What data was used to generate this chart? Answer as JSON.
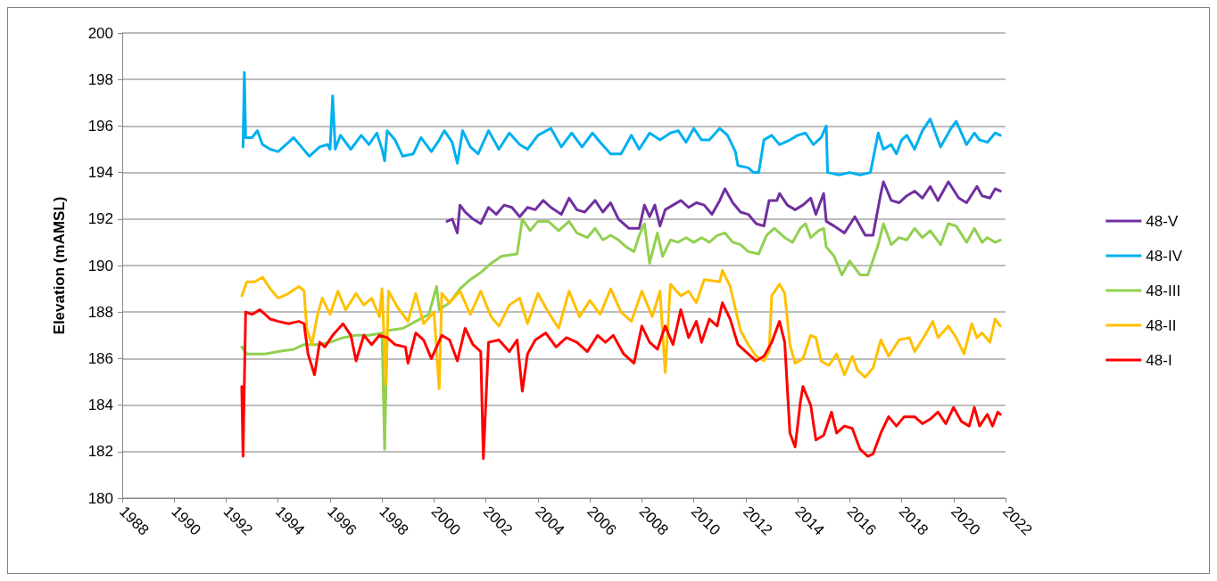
{
  "chart_data": {
    "type": "line",
    "ylabel": "Elevation (mAMSL)",
    "xlim": [
      1988,
      2022
    ],
    "xticks": [
      1988,
      1990,
      1992,
      1994,
      1996,
      1998,
      2000,
      2002,
      2004,
      2006,
      2008,
      2010,
      2012,
      2014,
      2016,
      2018,
      2020,
      2022
    ],
    "ylim": [
      180,
      200
    ],
    "yticks": [
      180,
      182,
      184,
      186,
      188,
      190,
      192,
      194,
      196,
      198,
      200
    ],
    "grid": "y",
    "legend": "right",
    "marker": "none",
    "line_style": "solid",
    "series": [
      {
        "name": "48-V",
        "color": "#7030a0",
        "x": [
          2000.5,
          2000.7,
          2000.9,
          2001.0,
          2001.2,
          2001.5,
          2001.8,
          2002.1,
          2002.4,
          2002.7,
          2003.0,
          2003.3,
          2003.6,
          2003.9,
          2004.2,
          2004.5,
          2004.9,
          2005.2,
          2005.5,
          2005.8,
          2006.2,
          2006.5,
          2006.8,
          2007.1,
          2007.5,
          2007.9,
          2008.1,
          2008.3,
          2008.5,
          2008.7,
          2008.9,
          2009.2,
          2009.5,
          2009.8,
          2010.1,
          2010.4,
          2010.7,
          2011.0,
          2011.2,
          2011.5,
          2011.8,
          2012.1,
          2012.4,
          2012.7,
          2012.9,
          2013.2,
          2013.3,
          2013.6,
          2013.9,
          2014.2,
          2014.5,
          2014.7,
          2015.0,
          2015.1,
          2015.4,
          2015.8,
          2016.2,
          2016.6,
          2016.9,
          2017.2,
          2017.3,
          2017.6,
          2017.9,
          2018.2,
          2018.5,
          2018.8,
          2019.1,
          2019.4,
          2019.8,
          2020.2,
          2020.5,
          2020.9,
          2021.1,
          2021.4,
          2021.6,
          2021.8
        ],
        "values": [
          191.9,
          192.0,
          191.4,
          192.6,
          192.3,
          192.0,
          191.8,
          192.5,
          192.2,
          192.6,
          192.5,
          192.1,
          192.5,
          192.4,
          192.8,
          192.5,
          192.2,
          192.9,
          192.4,
          192.3,
          192.8,
          192.3,
          192.7,
          192.0,
          191.6,
          191.6,
          192.6,
          192.1,
          192.6,
          191.7,
          192.4,
          192.6,
          192.8,
          192.5,
          192.7,
          192.6,
          192.2,
          192.8,
          193.3,
          192.7,
          192.3,
          192.2,
          191.8,
          191.7,
          192.8,
          192.8,
          193.1,
          192.6,
          192.4,
          192.6,
          192.9,
          192.2,
          193.1,
          191.9,
          191.7,
          191.4,
          192.1,
          191.3,
          191.3,
          193.1,
          193.6,
          192.8,
          192.7,
          193.0,
          193.2,
          192.9,
          193.4,
          192.8,
          193.6,
          192.9,
          192.7,
          193.4,
          193.0,
          192.9,
          193.3,
          193.2
        ]
      },
      {
        "name": "48-IV",
        "color": "#00b0f0",
        "x": [
          1992.65,
          1992.7,
          1992.75,
          1993.0,
          1993.2,
          1993.4,
          1993.7,
          1994.0,
          1994.3,
          1994.6,
          1994.9,
          1995.2,
          1995.6,
          1995.9,
          1996.0,
          1996.1,
          1996.2,
          1996.4,
          1996.8,
          1997.2,
          1997.5,
          1997.8,
          1998.0,
          1998.1,
          1998.2,
          1998.5,
          1998.8,
          1999.2,
          1999.5,
          1999.9,
          2000.2,
          2000.4,
          2000.7,
          2000.9,
          2001.1,
          2001.4,
          2001.7,
          2002.1,
          2002.5,
          2002.9,
          2003.3,
          2003.6,
          2004.0,
          2004.5,
          2004.9,
          2005.3,
          2005.7,
          2006.1,
          2006.4,
          2006.8,
          2007.2,
          2007.6,
          2007.9,
          2008.3,
          2008.7,
          2009.1,
          2009.4,
          2009.7,
          2010.0,
          2010.3,
          2010.6,
          2011.0,
          2011.3,
          2011.6,
          2011.7,
          2012.1,
          2012.3,
          2012.5,
          2012.7,
          2013.0,
          2013.3,
          2013.7,
          2014.0,
          2014.3,
          2014.6,
          2014.9,
          2015.1,
          2015.15,
          2015.6,
          2016.0,
          2016.4,
          2016.8,
          2017.1,
          2017.3,
          2017.6,
          2017.8,
          2018.0,
          2018.2,
          2018.5,
          2018.8,
          2019.1,
          2019.5,
          2019.9,
          2020.1,
          2020.5,
          2020.8,
          2021.0,
          2021.3,
          2021.6,
          2021.8
        ],
        "values": [
          195.1,
          198.3,
          195.5,
          195.5,
          195.8,
          195.2,
          195.0,
          194.9,
          195.2,
          195.5,
          195.1,
          194.7,
          195.1,
          195.2,
          195.0,
          197.3,
          195.0,
          195.6,
          195.0,
          195.6,
          195.2,
          195.7,
          195.0,
          194.5,
          195.8,
          195.4,
          194.7,
          194.8,
          195.5,
          194.9,
          195.4,
          195.8,
          195.3,
          194.4,
          195.8,
          195.1,
          194.8,
          195.8,
          195.0,
          195.7,
          195.2,
          195.0,
          195.6,
          195.9,
          195.1,
          195.7,
          195.1,
          195.7,
          195.3,
          194.8,
          194.8,
          195.6,
          195.0,
          195.7,
          195.4,
          195.7,
          195.8,
          195.3,
          195.9,
          195.4,
          195.4,
          195.9,
          195.6,
          194.9,
          194.3,
          194.2,
          194.0,
          194.0,
          195.4,
          195.6,
          195.2,
          195.4,
          195.6,
          195.7,
          195.2,
          195.5,
          196.0,
          194.0,
          193.9,
          194.0,
          193.9,
          194.0,
          195.7,
          195.0,
          195.2,
          194.8,
          195.4,
          195.6,
          195.0,
          195.8,
          196.3,
          195.1,
          195.9,
          196.2,
          195.2,
          195.7,
          195.4,
          195.3,
          195.7,
          195.6
        ]
      },
      {
        "name": "48-III",
        "color": "#92d050",
        "x": [
          1992.6,
          1992.8,
          1993.5,
          1994.0,
          1994.6,
          1995.0,
          1995.5,
          1996.0,
          1996.5,
          1997.0,
          1997.5,
          1998.0,
          1998.1,
          1998.2,
          1998.8,
          1999.3,
          1999.8,
          2000.1,
          2000.2,
          2000.6,
          2001.0,
          2001.4,
          2001.8,
          2002.2,
          2002.6,
          2003.2,
          2003.4,
          2003.7,
          2004.0,
          2004.4,
          2004.8,
          2005.2,
          2005.5,
          2005.9,
          2006.2,
          2006.5,
          2006.8,
          2007.1,
          2007.4,
          2007.7,
          2007.9,
          2008.1,
          2008.3,
          2008.6,
          2008.8,
          2009.1,
          2009.4,
          2009.7,
          2010.0,
          2010.3,
          2010.6,
          2010.9,
          2011.2,
          2011.5,
          2011.8,
          2012.1,
          2012.5,
          2012.8,
          2013.1,
          2013.5,
          2013.8,
          2014.1,
          2014.3,
          2014.5,
          2014.8,
          2015.0,
          2015.1,
          2015.4,
          2015.7,
          2016.0,
          2016.4,
          2016.7,
          2017.1,
          2017.3,
          2017.6,
          2017.9,
          2018.2,
          2018.5,
          2018.8,
          2019.1,
          2019.5,
          2019.8,
          2020.1,
          2020.5,
          2020.8,
          2021.1,
          2021.3,
          2021.6,
          2021.8
        ],
        "values": [
          186.5,
          186.2,
          186.2,
          186.3,
          186.4,
          186.6,
          186.6,
          186.7,
          186.9,
          187.0,
          187.0,
          187.1,
          182.1,
          187.2,
          187.3,
          187.6,
          187.9,
          189.1,
          188.1,
          188.4,
          189.0,
          189.4,
          189.7,
          190.1,
          190.4,
          190.5,
          192.0,
          191.5,
          191.9,
          191.9,
          191.5,
          191.9,
          191.4,
          191.2,
          191.6,
          191.1,
          191.3,
          191.1,
          190.8,
          190.6,
          191.3,
          191.8,
          190.1,
          191.4,
          190.4,
          191.1,
          191.0,
          191.2,
          191.0,
          191.2,
          191.0,
          191.3,
          191.4,
          191.0,
          190.9,
          190.6,
          190.5,
          191.3,
          191.6,
          191.2,
          191.0,
          191.6,
          191.8,
          191.2,
          191.5,
          191.6,
          190.8,
          190.4,
          189.6,
          190.2,
          189.6,
          189.6,
          190.9,
          191.8,
          190.9,
          191.2,
          191.1,
          191.6,
          191.2,
          191.5,
          190.9,
          191.8,
          191.7,
          191.0,
          191.6,
          191.0,
          191.2,
          191.0,
          191.1
        ]
      },
      {
        "name": "48-II",
        "color": "#ffc000",
        "x": [
          1992.6,
          1992.8,
          1993.1,
          1993.4,
          1993.7,
          1994.0,
          1994.4,
          1994.8,
          1995.0,
          1995.1,
          1995.3,
          1995.5,
          1995.7,
          1996.0,
          1996.3,
          1996.6,
          1997.0,
          1997.3,
          1997.6,
          1997.9,
          1998.0,
          1998.15,
          1998.25,
          1998.6,
          1999.0,
          1999.3,
          1999.6,
          2000.0,
          2000.2,
          2000.3,
          2000.6,
          2001.0,
          2001.4,
          2001.8,
          2002.2,
          2002.5,
          2002.9,
          2003.3,
          2003.6,
          2004.0,
          2004.4,
          2004.8,
          2005.2,
          2005.6,
          2006.0,
          2006.4,
          2006.8,
          2007.2,
          2007.6,
          2008.0,
          2008.4,
          2008.7,
          2008.9,
          2009.1,
          2009.5,
          2009.8,
          2010.1,
          2010.4,
          2011.0,
          2011.1,
          2011.4,
          2011.8,
          2012.1,
          2012.4,
          2012.7,
          2012.9,
          2013.0,
          2013.3,
          2013.5,
          2013.7,
          2013.9,
          2014.2,
          2014.5,
          2014.7,
          2014.9,
          2015.2,
          2015.5,
          2015.8,
          2016.1,
          2016.3,
          2016.6,
          2016.9,
          2017.2,
          2017.5,
          2017.9,
          2018.3,
          2018.5,
          2018.9,
          2019.2,
          2019.4,
          2019.8,
          2020.1,
          2020.4,
          2020.7,
          2020.9,
          2021.1,
          2021.4,
          2021.6,
          2021.8
        ],
        "values": [
          188.7,
          189.3,
          189.3,
          189.5,
          189.0,
          188.6,
          188.8,
          189.1,
          188.9,
          187.3,
          186.6,
          187.8,
          188.6,
          187.9,
          188.9,
          188.1,
          188.8,
          188.3,
          188.6,
          187.8,
          189.0,
          184.9,
          188.9,
          188.2,
          187.6,
          188.8,
          187.5,
          188.0,
          184.7,
          188.8,
          188.4,
          188.9,
          187.9,
          188.9,
          187.8,
          187.4,
          188.3,
          188.6,
          187.5,
          188.8,
          188.0,
          187.3,
          188.9,
          187.8,
          188.5,
          187.9,
          189.0,
          188.0,
          187.6,
          188.9,
          187.8,
          188.9,
          185.4,
          189.2,
          188.7,
          188.9,
          188.4,
          189.4,
          189.3,
          189.8,
          189.1,
          187.2,
          186.6,
          186.1,
          185.9,
          186.3,
          188.7,
          189.2,
          188.8,
          186.6,
          185.8,
          186.0,
          187.0,
          186.9,
          185.9,
          185.7,
          186.2,
          185.3,
          186.1,
          185.5,
          185.2,
          185.6,
          186.8,
          186.1,
          186.8,
          186.9,
          186.3,
          187.0,
          187.6,
          186.9,
          187.4,
          186.9,
          186.2,
          187.5,
          186.9,
          187.1,
          186.7,
          187.7,
          187.4
        ]
      },
      {
        "name": "48-I",
        "color": "#ff0000",
        "x": [
          1992.6,
          1992.65,
          1992.75,
          1993.0,
          1993.3,
          1993.7,
          1994.0,
          1994.4,
          1994.8,
          1995.0,
          1995.15,
          1995.4,
          1995.6,
          1995.8,
          1996.1,
          1996.5,
          1996.8,
          1997.0,
          1997.3,
          1997.6,
          1997.9,
          1998.2,
          1998.5,
          1998.9,
          1999.0,
          1999.3,
          1999.6,
          1999.9,
          2000.3,
          2000.6,
          2000.9,
          2001.2,
          2001.5,
          2001.8,
          2001.9,
          2002.1,
          2002.5,
          2002.9,
          2003.2,
          2003.4,
          2003.6,
          2003.9,
          2004.3,
          2004.7,
          2005.1,
          2005.5,
          2005.9,
          2006.3,
          2006.6,
          2006.9,
          2007.3,
          2007.7,
          2008.0,
          2008.3,
          2008.6,
          2008.9,
          2009.2,
          2009.5,
          2009.8,
          2010.1,
          2010.3,
          2010.6,
          2010.9,
          2011.1,
          2011.4,
          2011.7,
          2012.0,
          2012.4,
          2012.7,
          2013.0,
          2013.3,
          2013.5,
          2013.7,
          2013.9,
          2014.1,
          2014.2,
          2014.5,
          2014.7,
          2015.0,
          2015.3,
          2015.5,
          2015.8,
          2016.1,
          2016.4,
          2016.7,
          2016.9,
          2017.2,
          2017.5,
          2017.8,
          2018.1,
          2018.5,
          2018.8,
          2019.1,
          2019.4,
          2019.7,
          2020.0,
          2020.3,
          2020.6,
          2020.8,
          2021.0,
          2021.3,
          2021.5,
          2021.7,
          2021.8
        ],
        "values": [
          184.8,
          181.8,
          188.0,
          187.9,
          188.1,
          187.7,
          187.6,
          187.5,
          187.6,
          187.5,
          186.2,
          185.3,
          186.7,
          186.5,
          187.0,
          187.5,
          187.0,
          185.9,
          187.0,
          186.6,
          187.0,
          186.9,
          186.6,
          186.5,
          185.8,
          187.1,
          186.8,
          186.0,
          187.0,
          186.8,
          185.9,
          187.3,
          186.6,
          186.3,
          181.7,
          186.7,
          186.8,
          186.3,
          186.8,
          184.6,
          186.2,
          186.8,
          187.1,
          186.5,
          186.9,
          186.7,
          186.3,
          187.0,
          186.7,
          187.0,
          186.2,
          185.8,
          187.4,
          186.7,
          186.4,
          187.4,
          186.6,
          188.1,
          186.9,
          187.6,
          186.7,
          187.7,
          187.4,
          188.4,
          187.7,
          186.6,
          186.3,
          185.9,
          186.1,
          186.7,
          187.6,
          186.7,
          182.8,
          182.2,
          184.1,
          184.8,
          184.0,
          182.5,
          182.7,
          183.7,
          182.8,
          183.1,
          183.0,
          182.1,
          181.8,
          181.9,
          182.8,
          183.5,
          183.1,
          183.5,
          183.5,
          183.2,
          183.4,
          183.7,
          183.2,
          183.9,
          183.3,
          183.1,
          183.9,
          183.1,
          183.6,
          183.1,
          183.7,
          183.6
        ]
      }
    ]
  }
}
